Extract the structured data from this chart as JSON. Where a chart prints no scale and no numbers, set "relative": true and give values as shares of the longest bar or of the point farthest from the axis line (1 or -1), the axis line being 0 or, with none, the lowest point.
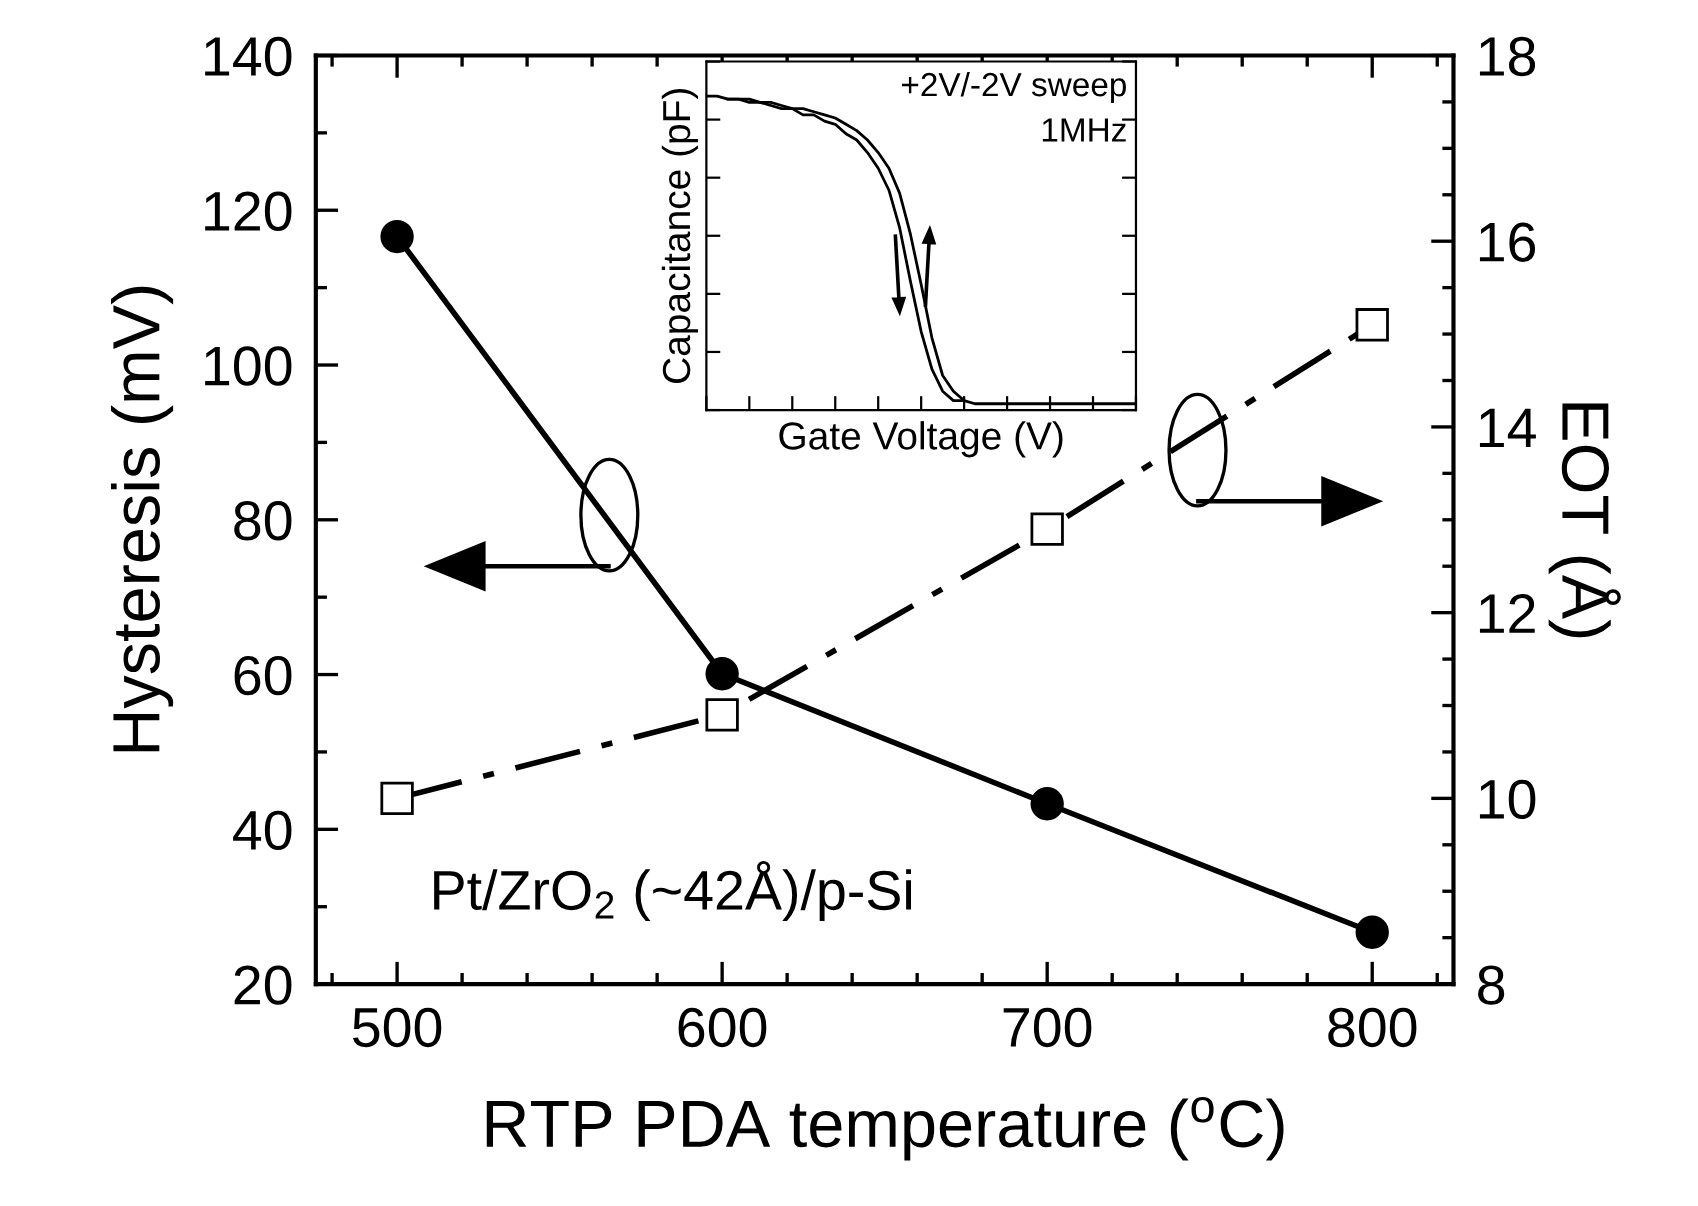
{
  "chart_data": [
    {
      "type": "line",
      "xlabel": "RTP PDA temperature ($^{o}$C)",
      "ylabel": "Hysteresis (mV)",
      "y2label": "EOT (Å)",
      "x": [
        500,
        600,
        700,
        800
      ],
      "series": [
        {
          "color": "#000000",
          "values": [
            116.6,
            60.1,
            43.3,
            26.7
          ],
          "marker": "circle",
          "line_style": "solid"
        },
        {
          "color": "#000000",
          "values": [
            10.0,
            10.9,
            12.9,
            15.1
          ],
          "marker": "square",
          "line_style": "dashed",
          "axis": "y2"
        }
      ],
      "xlim": [
        475,
        825
      ],
      "xticks": [
        500,
        600,
        700,
        800
      ],
      "ylim": [
        20,
        140
      ],
      "yticks": [
        20,
        40,
        60,
        80,
        100,
        120,
        140
      ],
      "y2lim": [
        8,
        18
      ],
      "y2ticks": [
        8,
        10,
        12,
        14,
        16,
        18
      ],
      "annotations": [
        "Pt/ZrO$_{2}$ (~42Å)/p-Si"
      ],
      "grid": false,
      "legend": false
    },
    {
      "type": "line",
      "xlabel": "Gate Voltage (V)",
      "ylabel": "Capacitance (pF)",
      "relative": true,
      "tick_labels": false,
      "categories": [
        null,
        null,
        null,
        null,
        null,
        null,
        null,
        null,
        null,
        null,
        null,
        null,
        null,
        null,
        null,
        null,
        null,
        null,
        null,
        null,
        null,
        null,
        null,
        null,
        null,
        null,
        null,
        null,
        null,
        null,
        null,
        null,
        null,
        null,
        null,
        null,
        null,
        null,
        null,
        null,
        null
      ],
      "series": [
        {
          "color": "#000000",
          "values": [
            1.0,
            1.0,
            0.99,
            0.99,
            0.98,
            0.98,
            0.97,
            0.96,
            0.96,
            0.94,
            0.94,
            0.92,
            0.91,
            0.88,
            0.86,
            0.82,
            0.77,
            0.7,
            0.58,
            0.41,
            0.25,
            0.13,
            0.06,
            0.03,
            0.03,
            0.02,
            0.02,
            0.02,
            0.02,
            0.02,
            0.02,
            0.02,
            0.02,
            0.02,
            0.02,
            0.02,
            0.02,
            0.02,
            0.02,
            0.02,
            0.02
          ]
        },
        {
          "color": "#000000",
          "values": [
            null,
            null,
            0.99,
            0.99,
            0.99,
            0.98,
            0.98,
            0.97,
            0.96,
            0.96,
            0.95,
            0.94,
            0.93,
            0.91,
            0.89,
            0.86,
            0.82,
            0.77,
            0.69,
            0.56,
            0.4,
            0.23,
            0.11,
            0.06,
            0.03,
            null,
            null,
            null,
            null,
            null,
            null,
            null,
            null,
            null,
            null,
            null,
            null,
            null,
            null,
            null,
            null
          ]
        }
      ],
      "annotations": [
        "+2V/-2V sweep",
        "1MHz"
      ],
      "grid": false
    }
  ]
}
